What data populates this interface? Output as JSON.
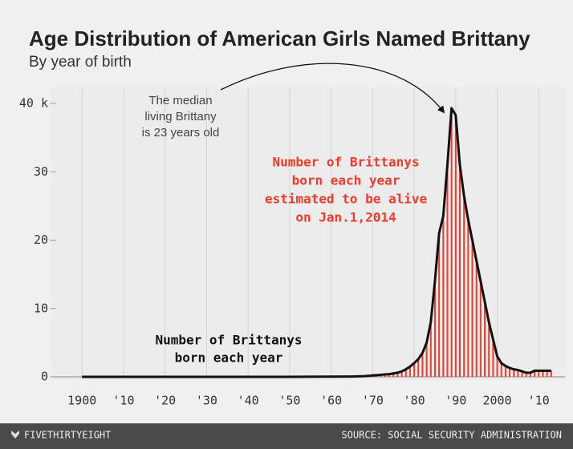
{
  "chart_data": {
    "type": "line-bar",
    "title": "Age Distribution of American Girls Named Brittany",
    "subtitle": "By year of birth",
    "x": [
      1900,
      1950,
      1965,
      1968,
      1969,
      1970,
      1971,
      1972,
      1973,
      1974,
      1975,
      1976,
      1977,
      1978,
      1979,
      1980,
      1981,
      1982,
      1983,
      1984,
      1985,
      1986,
      1987,
      1988,
      1989,
      1990,
      1991,
      1992,
      1993,
      1994,
      1995,
      1996,
      1997,
      1998,
      1999,
      2000,
      2001,
      2002,
      2003,
      2004,
      2005,
      2006,
      2007,
      2008,
      2009,
      2010,
      2011,
      2012,
      2013
    ],
    "series": [
      {
        "style": "bar",
        "color": "#ee3b2b",
        "values": [
          0,
          0,
          0.04,
          0.09,
          0.14,
          0.19,
          0.24,
          0.29,
          0.34,
          0.38,
          0.48,
          0.58,
          0.77,
          1.06,
          1.45,
          1.94,
          2.52,
          3.4,
          4.87,
          7.8,
          13.7,
          20.6,
          23.1,
          30.5,
          38.7,
          37.8,
          30.6,
          26.2,
          22.7,
          19.8,
          16.8,
          13.8,
          10.9,
          7.9,
          5.4,
          2.95,
          1.97,
          1.58,
          1.28,
          1.08,
          0.98,
          0.79,
          0.59,
          0.59,
          0.89,
          0.89,
          0.89,
          0.89,
          0.89
        ]
      },
      {
        "style": "line",
        "color": "#111111",
        "values": [
          0,
          0,
          0.05,
          0.1,
          0.15,
          0.2,
          0.25,
          0.3,
          0.35,
          0.4,
          0.5,
          0.6,
          0.8,
          1.1,
          1.5,
          2,
          2.6,
          3.5,
          5,
          8,
          14,
          21,
          23.5,
          31,
          39.3,
          38.3,
          31,
          26.5,
          23,
          20,
          17,
          14,
          11,
          8,
          5.5,
          3,
          2,
          1.6,
          1.3,
          1.1,
          1,
          0.8,
          0.6,
          0.6,
          0.9,
          0.9,
          0.9,
          0.9,
          0.9
        ]
      }
    ],
    "xlim": [
      1893,
      2014
    ],
    "ylim": [
      0,
      40
    ],
    "xticks": [
      1900,
      {
        "value": 1910,
        "label": "'10"
      },
      {
        "value": 1920,
        "label": "'20"
      },
      {
        "value": 1930,
        "label": "'30"
      },
      {
        "value": 1940,
        "label": "'40"
      },
      {
        "value": 1950,
        "label": "'50"
      },
      {
        "value": 1960,
        "label": "'60"
      },
      {
        "value": 1970,
        "label": "'70"
      },
      {
        "value": 1980,
        "label": "'80"
      },
      {
        "value": 1990,
        "label": "'90"
      },
      2000,
      {
        "value": 2010,
        "label": "'10"
      }
    ],
    "yticks": [
      0,
      10,
      20,
      30,
      {
        "value": 40,
        "label": "40 k"
      }
    ],
    "grid": "x",
    "annotations": [
      {
        "lines": [
          "The median",
          "living Brittany",
          "is 23 years old"
        ]
      },
      {
        "lines": [
          "Number of Brittanys",
          "born each year",
          "estimated to be alive",
          "on Jan.1,2014"
        ]
      },
      {
        "lines": [
          "Number of Brittanys",
          "born each year"
        ]
      }
    ],
    "footer": {
      "brand": "FIVETHIRTYEIGHT",
      "source": "SOURCE: SOCIAL SECURITY ADMINISTRATION"
    }
  }
}
